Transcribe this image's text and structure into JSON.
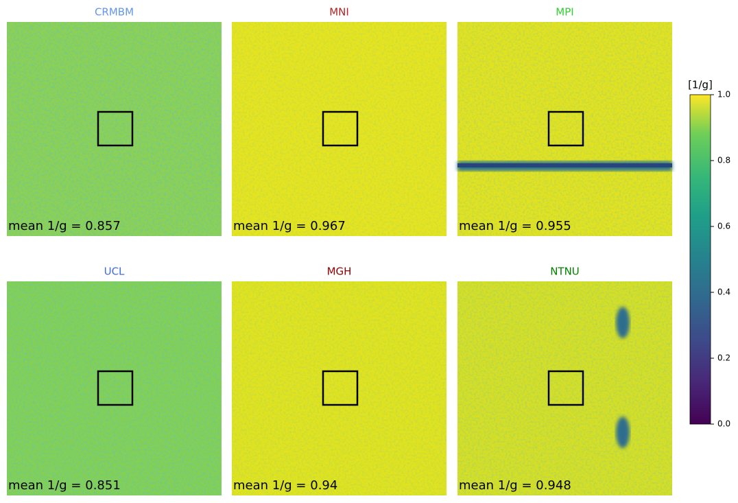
{
  "chart_data": {
    "type": "heatmap-grid",
    "panels": [
      {
        "title": "CRMBM",
        "title_color": "#6495ed",
        "annotation": "mean 1/g = 0.857"
      },
      {
        "title": "MNI",
        "title_color": "#b22222",
        "annotation": "mean 1/g = 0.967"
      },
      {
        "title": "MPI",
        "title_color": "#32cd32",
        "annotation": "mean 1/g = 0.955"
      },
      {
        "title": "UCL",
        "title_color": "#4169e1",
        "annotation": "mean 1/g = 0.851"
      },
      {
        "title": "MGH",
        "title_color": "#8b0000",
        "annotation": "mean 1/g = 0.94"
      },
      {
        "title": "NTNU",
        "title_color": "#008000",
        "annotation": "mean 1/g = 0.948"
      }
    ],
    "colorbar": {
      "label": "[1/g]",
      "ylim": [
        0,
        1
      ],
      "yticks": [
        {
          "value": 0,
          "label": "0.0"
        },
        {
          "value": 0.2,
          "label": "0.2"
        },
        {
          "value": 0.4,
          "label": "0.4"
        },
        {
          "value": 0.6,
          "label": "0.6"
        },
        {
          "value": 0.8,
          "label": "0.8"
        },
        {
          "value": 1,
          "label": "1.0"
        }
      ]
    }
  }
}
